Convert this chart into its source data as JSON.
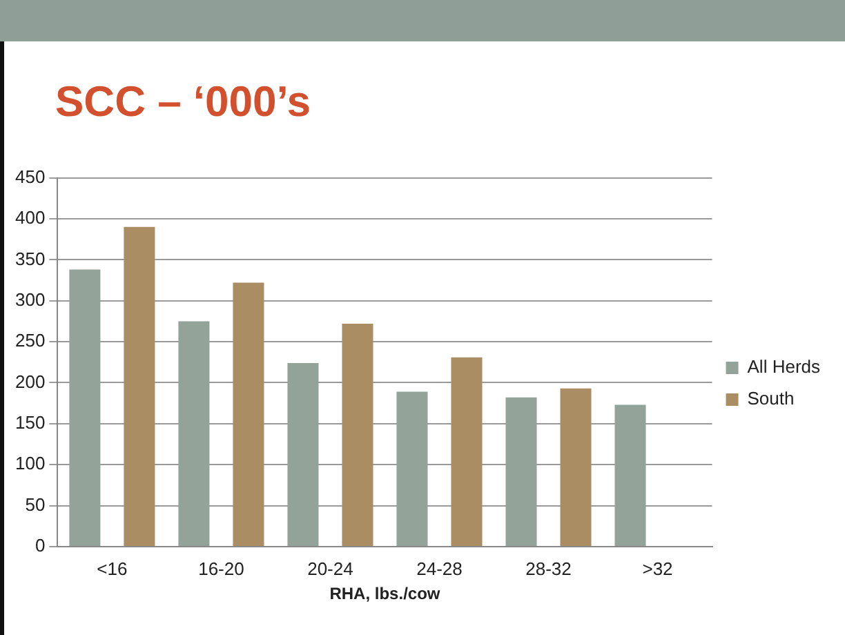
{
  "chart_data": {
    "type": "bar",
    "title": "SCC – ‘000’s",
    "xlabel": "RHA, lbs./cow",
    "categories": [
      "<16",
      "16-20",
      "20-24",
      "24-28",
      "28-32",
      ">32"
    ],
    "series": [
      {
        "name": "All Herds",
        "color": "#94a39a",
        "values": [
          338,
          275,
          224,
          189,
          182,
          173
        ]
      },
      {
        "name": "South",
        "color": "#ab8d64",
        "values": [
          390,
          322,
          272,
          231,
          193,
          null
        ]
      }
    ],
    "ylim": [
      0,
      450
    ],
    "yticks": [
      0,
      50,
      100,
      150,
      200,
      250,
      300,
      350,
      400,
      450
    ],
    "grid": "y",
    "legend": "right"
  }
}
